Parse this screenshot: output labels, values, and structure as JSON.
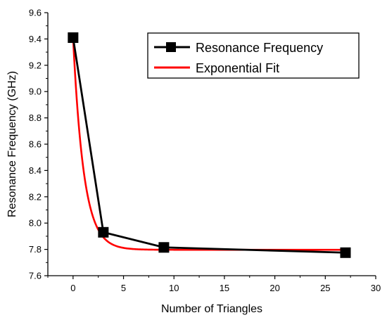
{
  "chart_data": {
    "type": "line",
    "xlabel": "Number of Triangles",
    "ylabel": "Resonance Frequency (GHz)",
    "xlim": [
      -2.5,
      30
    ],
    "ylim": [
      7.6,
      9.6
    ],
    "xticks": [
      0,
      5,
      10,
      15,
      20,
      25,
      30
    ],
    "yticks": [
      7.6,
      7.8,
      8.0,
      8.2,
      8.4,
      8.6,
      8.8,
      9.0,
      9.2,
      9.4,
      9.6
    ],
    "xtick_labels": [
      "0",
      "5",
      "10",
      "15",
      "20",
      "25",
      "30"
    ],
    "ytick_labels": [
      "7.6",
      "7.8",
      "8.0",
      "8.2",
      "8.4",
      "8.6",
      "8.8",
      "9.0",
      "9.2",
      "9.4",
      "9.6"
    ],
    "legend_position": "top-right",
    "series": [
      {
        "name": "Resonance Frequency",
        "style": "line-square-markers",
        "color": "#000000",
        "x": [
          0,
          3,
          9,
          27
        ],
        "y": [
          9.41,
          7.93,
          7.815,
          7.775
        ]
      },
      {
        "name": "Exponential Fit",
        "style": "line",
        "color": "#ff0000",
        "model": "y = y0 + A*exp(-x/t)",
        "params": {
          "y0": 7.797,
          "A": 1.613,
          "t": 1.06
        }
      }
    ]
  }
}
